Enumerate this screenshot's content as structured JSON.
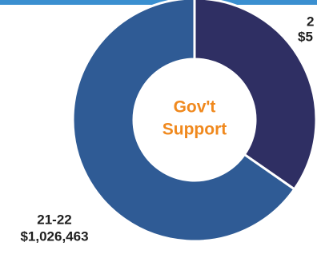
{
  "chart_data": {
    "type": "donut",
    "categories": [
      null,
      "21-22"
    ],
    "values": [
      545000,
      1026463
    ],
    "value_labels": [
      null,
      "$1,026,463"
    ],
    "colors": [
      "#2f2f63",
      "#2f5b95"
    ],
    "center_text": [
      "Gov't",
      "Support"
    ],
    "annotations": [
      "2",
      "$5"
    ]
  }
}
